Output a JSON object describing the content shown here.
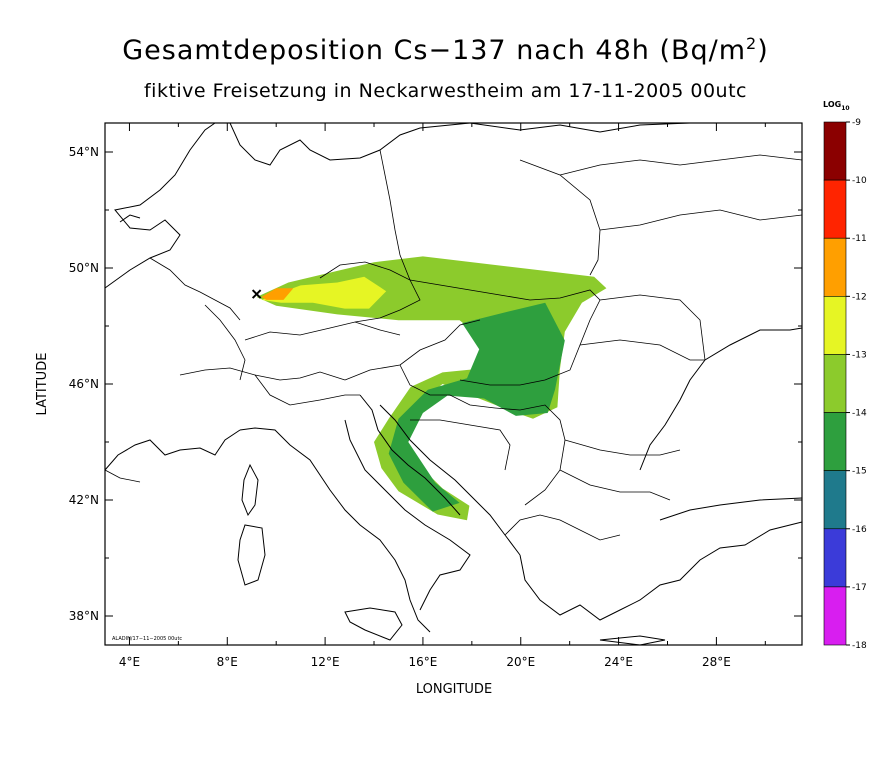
{
  "title_text": "Gesamtdeposition Cs−137 nach 48h (Bq/m",
  "title_sup": "2",
  "title_close": ")",
  "subtitle": "fiktive Freisetzung in Neckarwestheim am 17-11-2005 00utc",
  "footer_note": "ALADIN/17−11−2005 00utc",
  "map": {
    "xlabel": "LONGITUDE",
    "ylabel": "LATITUDE",
    "lon_range": [
      3.0,
      31.5
    ],
    "lat_range": [
      37.0,
      55.0
    ],
    "lon_ticks": [
      {
        "value": 4,
        "label": "4°E"
      },
      {
        "value": 8,
        "label": "8°E"
      },
      {
        "value": 12,
        "label": "12°E"
      },
      {
        "value": 16,
        "label": "16°E"
      },
      {
        "value": 20,
        "label": "20°E"
      },
      {
        "value": 24,
        "label": "24°E"
      },
      {
        "value": 28,
        "label": "28°E"
      }
    ],
    "lat_ticks": [
      {
        "value": 38,
        "label": "38°N"
      },
      {
        "value": 42,
        "label": "42°N"
      },
      {
        "value": 46,
        "label": "46°N"
      },
      {
        "value": 50,
        "label": "50°N"
      },
      {
        "value": 54,
        "label": "54°N"
      }
    ],
    "release_site": {
      "lon": 9.2,
      "lat": 49.1,
      "name": "Neckarwestheim"
    }
  },
  "legend": {
    "title": "LOG",
    "title_sub": "10",
    "classes": [
      {
        "from": -9,
        "to": -10,
        "color": "#8b0000"
      },
      {
        "from": -10,
        "to": -11,
        "color": "#ff2400"
      },
      {
        "from": -11,
        "to": -12,
        "color": "#ff9f00"
      },
      {
        "from": -12,
        "to": -13,
        "color": "#e6f524"
      },
      {
        "from": -13,
        "to": -14,
        "color": "#8ccb2c"
      },
      {
        "from": -14,
        "to": -15,
        "color": "#2e9f3e"
      },
      {
        "from": -15,
        "to": -16,
        "color": "#1f7a8c"
      },
      {
        "from": -16,
        "to": -17,
        "color": "#3b3bd9"
      },
      {
        "from": -17,
        "to": -18,
        "color": "#d81ef0"
      }
    ],
    "tick_labels": [
      "-9",
      "-10",
      "-11",
      "-12",
      "-13",
      "-14",
      "-15",
      "-16",
      "-17",
      "-18"
    ]
  },
  "plume_regions": [
    {
      "level": -13,
      "lonlat": [
        [
          9.2,
          49.0
        ],
        [
          10.5,
          49.5
        ],
        [
          12.5,
          49.9
        ],
        [
          14.0,
          50.2
        ],
        [
          16.0,
          50.4
        ],
        [
          19.0,
          50.1
        ],
        [
          21.0,
          49.9
        ],
        [
          23.0,
          49.7
        ],
        [
          23.5,
          49.3
        ],
        [
          22.5,
          48.8
        ],
        [
          21.8,
          47.8
        ],
        [
          21.6,
          46.5
        ],
        [
          21.5,
          45.2
        ],
        [
          20.5,
          44.8
        ],
        [
          19.5,
          45.1
        ],
        [
          18.0,
          45.6
        ],
        [
          16.8,
          46.0
        ],
        [
          15.8,
          45.3
        ],
        [
          15.2,
          44.4
        ],
        [
          15.6,
          43.4
        ],
        [
          16.8,
          42.4
        ],
        [
          17.9,
          41.8
        ],
        [
          17.8,
          41.3
        ],
        [
          16.6,
          41.5
        ],
        [
          15.0,
          42.3
        ],
        [
          14.3,
          43.1
        ],
        [
          14.0,
          44.0
        ],
        [
          14.6,
          44.8
        ],
        [
          15.5,
          45.9
        ],
        [
          16.8,
          46.4
        ],
        [
          18.0,
          46.5
        ],
        [
          18.5,
          47.5
        ],
        [
          17.5,
          48.2
        ],
        [
          15.0,
          48.2
        ],
        [
          12.5,
          48.4
        ],
        [
          10.0,
          48.7
        ]
      ]
    },
    {
      "level": -14,
      "lonlat": [
        [
          17.6,
          48.1
        ],
        [
          19.5,
          48.5
        ],
        [
          21.0,
          48.8
        ],
        [
          21.8,
          47.5
        ],
        [
          21.4,
          45.8
        ],
        [
          21.1,
          45.0
        ],
        [
          19.8,
          44.9
        ],
        [
          18.5,
          45.5
        ],
        [
          17.0,
          45.6
        ],
        [
          16.0,
          45.0
        ],
        [
          15.4,
          44.0
        ],
        [
          16.5,
          42.6
        ],
        [
          17.5,
          41.9
        ],
        [
          16.4,
          41.6
        ],
        [
          15.2,
          42.6
        ],
        [
          14.6,
          43.6
        ],
        [
          15.0,
          44.8
        ],
        [
          16.2,
          45.8
        ],
        [
          17.8,
          46.2
        ],
        [
          18.3,
          47.2
        ]
      ]
    },
    {
      "level": -12,
      "lonlat": [
        [
          9.4,
          48.9
        ],
        [
          11.0,
          49.4
        ],
        [
          12.5,
          49.5
        ],
        [
          13.6,
          49.7
        ],
        [
          14.5,
          49.2
        ],
        [
          13.8,
          48.6
        ],
        [
          12.8,
          48.6
        ],
        [
          11.5,
          48.8
        ],
        [
          10.2,
          48.8
        ]
      ]
    },
    {
      "level": -11,
      "lonlat": [
        [
          9.4,
          49.0
        ],
        [
          10.0,
          49.3
        ],
        [
          10.7,
          49.3
        ],
        [
          10.3,
          48.9
        ],
        [
          9.6,
          48.9
        ]
      ]
    }
  ]
}
